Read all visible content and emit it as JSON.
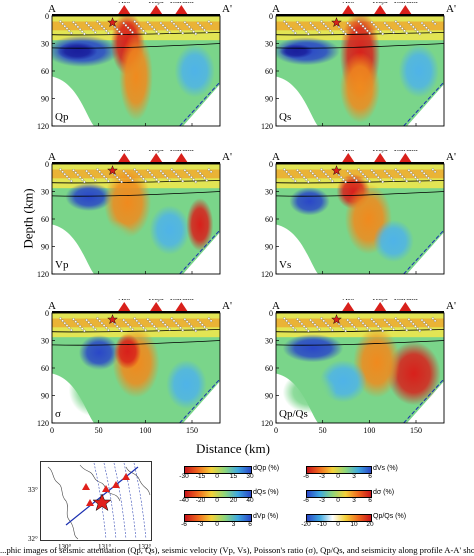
{
  "panels": [
    {
      "key": "qp",
      "label": "Qp"
    },
    {
      "key": "qs",
      "label": "Qs"
    },
    {
      "key": "vp",
      "label": "Vp"
    },
    {
      "key": "vs",
      "label": "Vs"
    },
    {
      "key": "sigma",
      "label": "σ"
    },
    {
      "key": "qpqs",
      "label": "Qp/Qs"
    }
  ],
  "profile": {
    "start": "A",
    "end": "A'"
  },
  "volcanoes": [
    "Aso",
    "Kuju",
    "Tsurumi"
  ],
  "y_axis": {
    "label": "Depth (km)",
    "ticks": [
      "0",
      "30",
      "60",
      "90",
      "120"
    ]
  },
  "x_axis": {
    "label": "Distance (km)",
    "ticks": [
      "0",
      "50",
      "100",
      "150"
    ]
  },
  "map": {
    "lat_ticks": [
      "33°",
      "32°"
    ],
    "lon_ticks": [
      "130°",
      "131°",
      "132°"
    ]
  },
  "legends": [
    {
      "label": "dQp (%)",
      "ticks": [
        "-30",
        "-15",
        "0",
        "15",
        "30"
      ]
    },
    {
      "label": "dVs (%)",
      "ticks": [
        "-6",
        "-3",
        "0",
        "3",
        "6"
      ]
    },
    {
      "label": "dQs (%)",
      "ticks": [
        "-40",
        "-20",
        "0",
        "20",
        "40"
      ]
    },
    {
      "label": "dσ (%)",
      "ticks": [
        "-6",
        "-3",
        "0",
        "3",
        "6"
      ]
    },
    {
      "label": "dVp (%)",
      "ticks": [
        "-6",
        "-3",
        "0",
        "3",
        "6"
      ]
    },
    {
      "label": "Qp/Qs (%)",
      "ticks": [
        "-20",
        "-10",
        "0",
        "10",
        "20"
      ]
    }
  ],
  "caption": "...phic images of seismic attenuation (Qp, Qs), seismic velocity (Vp, Vs), Poisson's ratio (σ), Qp/Qs, and seismicity along profile A-A' shown in the inset...",
  "colors": {
    "red": "#d8201b",
    "orange": "#f08a1e",
    "yellow": "#f4e84a",
    "green": "#7ad58a",
    "cyan": "#4fb3e8",
    "blue": "#2a47c8",
    "deepblue": "#1a1f9c"
  }
}
